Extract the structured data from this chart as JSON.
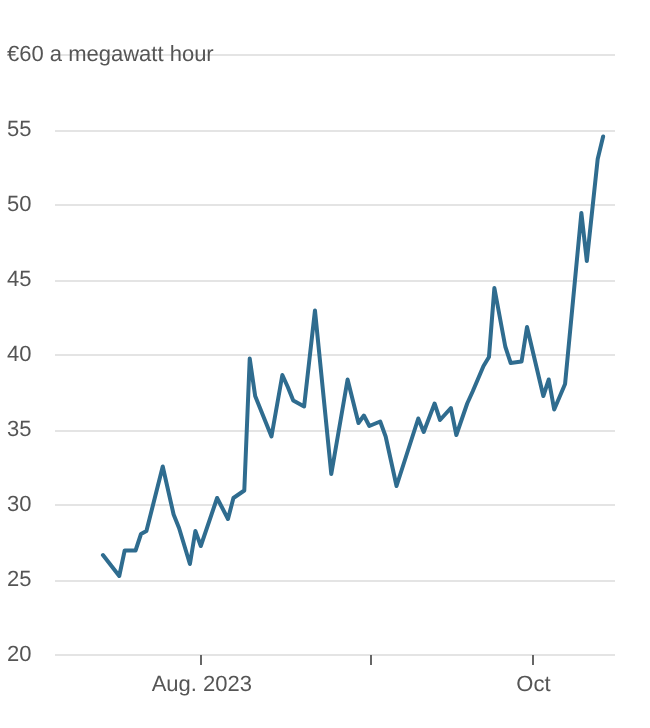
{
  "chart_data": {
    "type": "line",
    "x": [
      "2023-07-14",
      "2023-07-17",
      "2023-07-18",
      "2023-07-20",
      "2023-07-21",
      "2023-07-22",
      "2023-07-25",
      "2023-07-27",
      "2023-07-28",
      "2023-07-30",
      "2023-07-31",
      "2023-08-01",
      "2023-08-04",
      "2023-08-06",
      "2023-08-07",
      "2023-08-09",
      "2023-08-10",
      "2023-08-11",
      "2023-08-13",
      "2023-08-14",
      "2023-08-16",
      "2023-08-17",
      "2023-08-18",
      "2023-08-20",
      "2023-08-22",
      "2023-08-25",
      "2023-08-28",
      "2023-08-30",
      "2023-08-31",
      "2023-09-01",
      "2023-09-03",
      "2023-09-04",
      "2023-09-06",
      "2023-09-10",
      "2023-09-11",
      "2023-09-13",
      "2023-09-14",
      "2023-09-16",
      "2023-09-17",
      "2023-09-19",
      "2023-09-20",
      "2023-09-22",
      "2023-09-23",
      "2023-09-24",
      "2023-09-26",
      "2023-09-27",
      "2023-09-29",
      "2023-09-30",
      "2023-10-03",
      "2023-10-04",
      "2023-10-05",
      "2023-10-07",
      "2023-10-10",
      "2023-10-11",
      "2023-10-13",
      "2023-10-14"
    ],
    "series": [
      {
        "color": "#2f6c8f",
        "values": [
          26.6,
          25.2,
          26.9,
          26.9,
          28.0,
          28.2,
          32.5,
          29.3,
          28.4,
          26.0,
          28.2,
          27.2,
          30.4,
          29.0,
          30.4,
          30.9,
          39.7,
          37.2,
          35.4,
          34.5,
          38.6,
          37.8,
          36.9,
          36.5,
          42.9,
          32.0,
          38.3,
          35.4,
          35.9,
          35.2,
          35.5,
          34.5,
          31.2,
          35.7,
          34.8,
          36.7,
          35.6,
          36.4,
          34.6,
          36.7,
          37.5,
          39.2,
          39.8,
          44.4,
          40.5,
          39.4,
          39.5,
          41.8,
          37.2,
          38.3,
          36.3,
          38.0,
          49.4,
          46.2,
          53.0,
          54.5
        ]
      }
    ],
    "xlim": [
      "2023-07-05",
      "2023-10-16"
    ],
    "xticks": [
      {
        "value": "2023-08-01",
        "label": "Aug. 2023"
      },
      {
        "value": "2023-09-01",
        "label": null
      },
      {
        "value": "2023-10-01",
        "label": "Oct"
      }
    ],
    "ylim": [
      20,
      60
    ],
    "yticks": [
      20,
      25,
      30,
      35,
      40,
      45,
      50,
      55,
      {
        "value": 60,
        "label": "€60 a megawatt hour"
      }
    ],
    "grid": "y"
  }
}
